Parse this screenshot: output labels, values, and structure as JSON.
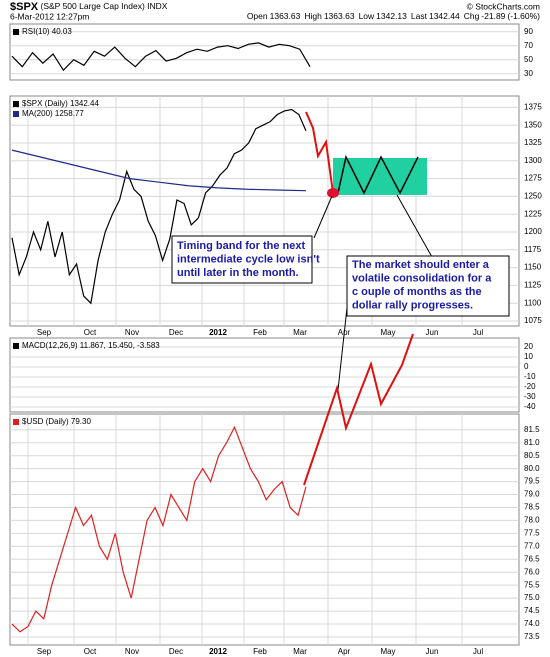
{
  "header": {
    "symbol": "$SPX",
    "name": "(S&P 500 Large Cap Index) INDX",
    "date": "6-Mar-2012 12:27pm",
    "copyright": "© StockCharts.com",
    "quote": [
      {
        "label": "Open",
        "value": 1363.63
      },
      {
        "label": "High",
        "value": 1363.63
      },
      {
        "label": "Low",
        "value": 1342.13
      },
      {
        "label": "Last",
        "value": 1342.44
      },
      {
        "label": "Chg",
        "value": -21.89
      }
    ],
    "chg_pct": "(-1.60%)"
  },
  "chart_data": [
    {
      "type": "line",
      "ylim": [
        21,
        101
      ],
      "yticks": [
        90,
        70,
        50,
        30
      ],
      "grid": true,
      "series": [
        {
          "name": "RSI(10) 40.03",
          "color": "#000000",
          "values": [
            55,
            40,
            60,
            45,
            58,
            35,
            50,
            42,
            62,
            55,
            68,
            52,
            40,
            55,
            63,
            48,
            52,
            60,
            65,
            62,
            68,
            70,
            66,
            72,
            74,
            68,
            72,
            70,
            65,
            40
          ]
        }
      ]
    },
    {
      "type": "line",
      "ylim": [
        1068,
        1391
      ],
      "yticks": [
        1375,
        1350,
        1325,
        1300,
        1275,
        1250,
        1225,
        1200,
        1175,
        1150,
        1125,
        1100,
        1075
      ],
      "grid": true,
      "x_labels": [
        "Sep",
        "Oct",
        "Nov",
        "Dec",
        "2012",
        "Feb",
        "Mar",
        "Apr",
        "May",
        "Jun",
        "Jul"
      ],
      "series": [
        {
          "name": "$SPX (Daily) 1342.44",
          "color": "#000000",
          "values": [
            1192,
            1140,
            1165,
            1200,
            1175,
            1215,
            1165,
            1200,
            1140,
            1155,
            1110,
            1100,
            1160,
            1200,
            1225,
            1245,
            1285,
            1260,
            1250,
            1215,
            1195,
            1160,
            1190,
            1245,
            1240,
            1210,
            1220,
            1255,
            1265,
            1280,
            1290,
            1310,
            1315,
            1325,
            1345,
            1350,
            1355,
            1365,
            1370,
            1372,
            1365,
            1342
          ]
        },
        {
          "name": "MA(200) 1258.77",
          "color": "#1f2a8a",
          "values": [
            1315,
            1305,
            1295,
            1285,
            1275,
            1270,
            1265,
            1262,
            1260,
            1259,
            1258
          ]
        }
      ]
    },
    {
      "type": "line",
      "ylim": [
        -45,
        29
      ],
      "yticks": [
        20,
        10,
        0,
        -10,
        -20,
        -30,
        -40
      ],
      "grid": true,
      "series": [
        {
          "name": "MACD(12,26,9) 11.867, 15.450, -3.583",
          "color": "#000000",
          "values": []
        }
      ]
    },
    {
      "type": "line",
      "ylim": [
        73.19,
        82.11
      ],
      "yticks": [
        81.5,
        {
          "value": 81,
          "label": "81.0"
        },
        80.5,
        {
          "value": 80,
          "label": "80.0"
        },
        79.5,
        {
          "value": 79,
          "label": "79.0"
        },
        78.5,
        {
          "value": 78,
          "label": "78.0"
        },
        77.5,
        {
          "value": 77,
          "label": "77.0"
        },
        76.5,
        {
          "value": 76,
          "label": "76.0"
        },
        75.5,
        {
          "value": 75,
          "label": "75.0"
        },
        74.5,
        {
          "value": 74,
          "label": "74.0"
        },
        73.5
      ],
      "grid": true,
      "x_labels": [
        "Sep",
        "Oct",
        "Nov",
        "Dec",
        "2012",
        "Feb",
        "Mar",
        "Apr",
        "May",
        "Jun",
        "Jul"
      ],
      "series": [
        {
          "name": "$USD (Daily) 79.30",
          "color": "#e02020",
          "values": [
            74.0,
            73.7,
            73.9,
            74.5,
            74.2,
            75.5,
            76.5,
            77.5,
            78.5,
            77.8,
            78.2,
            77.0,
            76.5,
            77.5,
            76.0,
            75.0,
            76.5,
            78.0,
            78.5,
            77.8,
            79.0,
            78.5,
            78.0,
            79.5,
            80.0,
            79.5,
            80.5,
            81.0,
            81.6,
            80.8,
            80.0,
            79.5,
            78.8,
            79.2,
            79.5,
            78.5,
            78.2,
            79.3
          ]
        }
      ]
    }
  ],
  "annotations": [
    {
      "lines": [
        "Timing band for the next",
        "intermediate cycle low isn't",
        "until later in the month."
      ]
    },
    {
      "lines": [
        "The market should enter a",
        "volatile consolidation for a",
        "c ouple of months as the",
        "dollar rally progresses."
      ]
    }
  ]
}
